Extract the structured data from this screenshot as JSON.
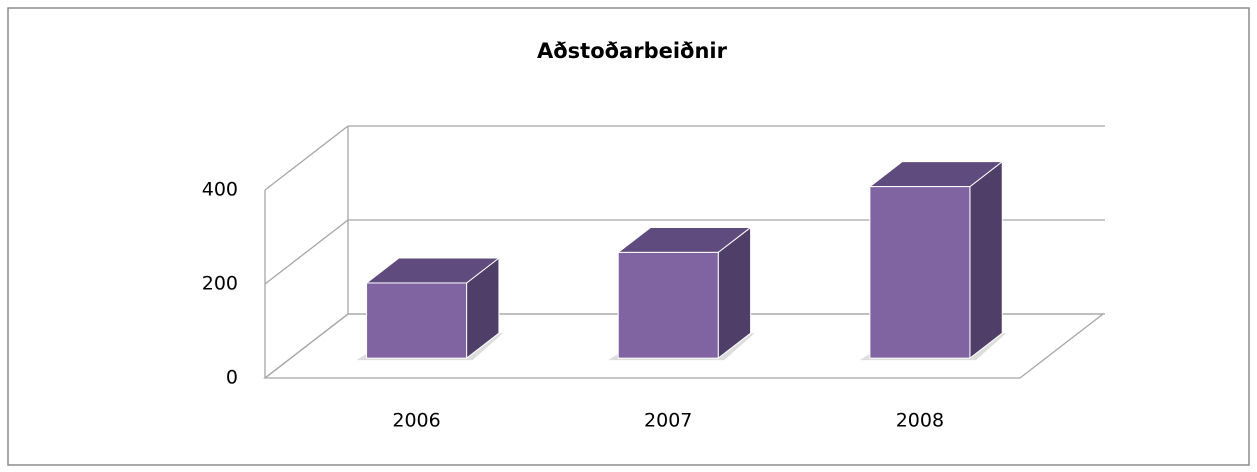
{
  "chart_data": {
    "type": "bar3d",
    "title": "Aðstoðarbeiðnir",
    "categories": [
      "2006",
      "2007",
      "2008"
    ],
    "values": [
      160,
      225,
      365
    ],
    "color": "#8064a2",
    "ylim": [
      0,
      400
    ],
    "yticks": [
      0,
      200,
      400
    ],
    "grid": true
  }
}
